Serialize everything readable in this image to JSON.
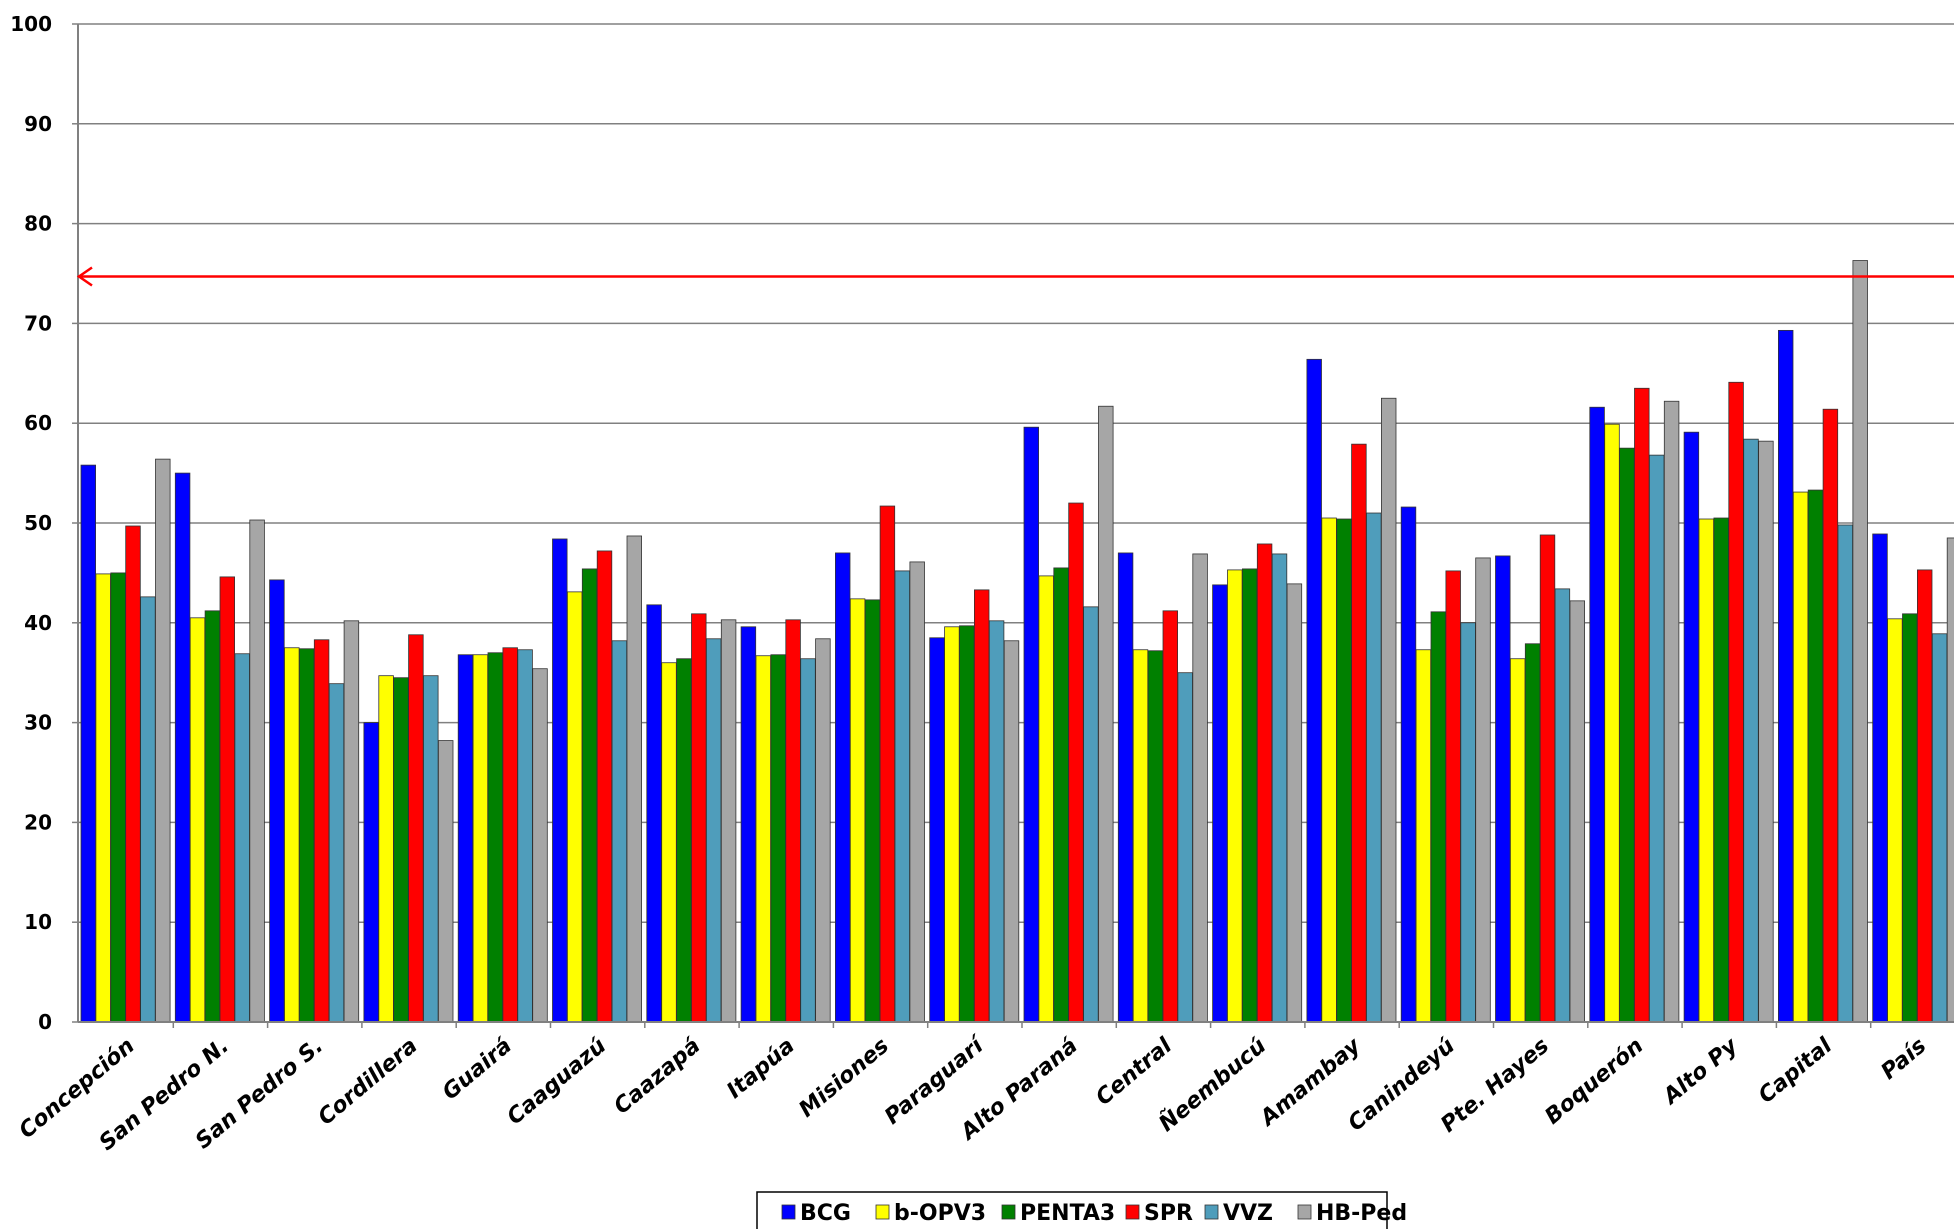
{
  "chart_data": {
    "type": "bar",
    "categories": [
      "Concepción",
      "San Pedro N.",
      "San Pedro S.",
      "Cordillera",
      "Guairá",
      "Caaguazú",
      "Caazapá",
      "Itapúa",
      "Misiones",
      "Paraguarí",
      "Alto Paraná",
      "Central",
      "Ñeembucú",
      "Amambay",
      "Canindeyú",
      "Pte. Hayes",
      "Boquerón",
      "Alto Py",
      "Capital",
      "País"
    ],
    "series": [
      {
        "name": "BCG",
        "color": "#0000ff",
        "values": [
          55.8,
          55.0,
          44.3,
          30.0,
          36.8,
          48.4,
          41.8,
          39.6,
          47.0,
          38.5,
          59.6,
          47.0,
          43.8,
          66.4,
          51.6,
          46.7,
          61.6,
          59.1,
          69.3,
          48.9
        ]
      },
      {
        "name": "b-OPV3",
        "color": "#ffff00",
        "values": [
          44.9,
          40.5,
          37.5,
          34.7,
          36.8,
          43.1,
          36.0,
          36.7,
          42.4,
          39.6,
          44.7,
          37.3,
          45.3,
          50.5,
          37.3,
          36.4,
          59.9,
          50.4,
          53.1,
          40.4
        ]
      },
      {
        "name": "PENTA3",
        "color": "#008000",
        "values": [
          45.0,
          41.2,
          37.4,
          34.5,
          37.0,
          45.4,
          36.4,
          36.8,
          42.3,
          39.7,
          45.5,
          37.2,
          45.4,
          50.4,
          41.1,
          37.9,
          57.5,
          50.5,
          53.3,
          40.9
        ]
      },
      {
        "name": "SPR",
        "color": "#ff0000",
        "values": [
          49.7,
          44.6,
          38.3,
          38.8,
          37.5,
          47.2,
          40.9,
          40.3,
          51.7,
          43.3,
          52.0,
          41.2,
          47.9,
          57.9,
          45.2,
          48.8,
          63.5,
          64.1,
          61.4,
          45.3
        ]
      },
      {
        "name": "VVZ",
        "color": "#4f9dbb",
        "values": [
          42.6,
          36.9,
          33.9,
          34.7,
          37.3,
          38.2,
          38.4,
          36.4,
          45.2,
          40.2,
          41.6,
          35.0,
          46.9,
          51.0,
          40.0,
          43.4,
          56.8,
          58.4,
          49.8,
          38.9
        ]
      },
      {
        "name": "HB-Ped",
        "color": "#a6a6a6",
        "values": [
          56.4,
          50.3,
          40.2,
          28.2,
          35.4,
          48.7,
          40.3,
          38.4,
          46.1,
          38.2,
          61.7,
          46.9,
          43.9,
          62.5,
          46.5,
          42.2,
          62.2,
          58.2,
          76.3,
          48.5
        ]
      }
    ],
    "title": "",
    "xlabel": "",
    "ylabel": "",
    "ylim": [
      0,
      100
    ],
    "yticks": [
      "0",
      "10",
      "20",
      "30",
      "40",
      "50",
      "60",
      "70",
      "80",
      "90",
      "100"
    ],
    "grid": true,
    "legend_position": "bottom",
    "reference_line": {
      "value": 74.7,
      "color": "#ff0000"
    },
    "axis_color": "#808080",
    "grid_color": "#808080"
  }
}
